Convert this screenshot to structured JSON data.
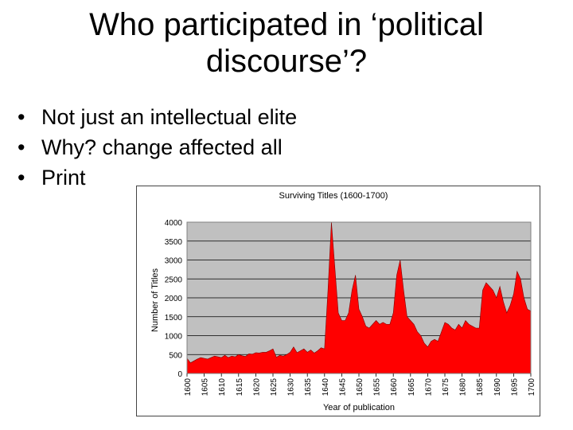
{
  "slide": {
    "title_line1": "Who participated in ‘political",
    "title_line2": "discourse’?",
    "bullets": [
      "Not just an intellectual elite",
      "Why? change affected all",
      "Print"
    ],
    "bullet_glyph": "•"
  },
  "chart_data": {
    "type": "area",
    "title": "Surviving Titles (1600-1700)",
    "xlabel": "Year of publication",
    "ylabel": "Number of Titles",
    "ylim": [
      0,
      4000
    ],
    "xlim": [
      1600,
      1700
    ],
    "y_ticks": [
      0,
      500,
      1000,
      1500,
      2000,
      2500,
      3000,
      3500,
      4000
    ],
    "x_ticks": [
      1600,
      1605,
      1610,
      1615,
      1620,
      1625,
      1630,
      1635,
      1640,
      1645,
      1650,
      1655,
      1660,
      1665,
      1670,
      1675,
      1680,
      1685,
      1690,
      1695,
      1700
    ],
    "grid": true,
    "fill_color": "#ff0000",
    "plot_bg": "#c0c0c0",
    "series": [
      {
        "x": [
          1600,
          1601,
          1602,
          1603,
          1604,
          1605,
          1606,
          1607,
          1608,
          1609,
          1610,
          1611,
          1612,
          1613,
          1614,
          1615,
          1616,
          1617,
          1618,
          1619,
          1620,
          1621,
          1622,
          1623,
          1624,
          1625,
          1626,
          1627,
          1628,
          1629,
          1630,
          1631,
          1632,
          1633,
          1634,
          1635,
          1636,
          1637,
          1638,
          1639,
          1640,
          1641,
          1642,
          1643,
          1644,
          1645,
          1646,
          1647,
          1648,
          1649,
          1650,
          1651,
          1652,
          1653,
          1654,
          1655,
          1656,
          1657,
          1658,
          1659,
          1660,
          1661,
          1662,
          1663,
          1664,
          1665,
          1666,
          1667,
          1668,
          1669,
          1670,
          1671,
          1672,
          1673,
          1674,
          1675,
          1676,
          1677,
          1678,
          1679,
          1680,
          1681,
          1682,
          1683,
          1684,
          1685,
          1686,
          1687,
          1688,
          1689,
          1690,
          1691,
          1692,
          1693,
          1694,
          1695,
          1696,
          1697,
          1698,
          1699,
          1700
        ],
        "values": [
          400,
          280,
          330,
          380,
          420,
          400,
          380,
          420,
          460,
          440,
          420,
          480,
          420,
          460,
          440,
          500,
          470,
          450,
          520,
          510,
          550,
          540,
          560,
          560,
          600,
          650,
          430,
          480,
          460,
          500,
          560,
          700,
          550,
          600,
          650,
          560,
          620,
          540,
          600,
          680,
          650,
          2200,
          4000,
          2800,
          1600,
          1400,
          1400,
          1600,
          2200,
          2600,
          1700,
          1500,
          1250,
          1200,
          1300,
          1400,
          1300,
          1350,
          1300,
          1300,
          1600,
          2600,
          3000,
          2200,
          1500,
          1400,
          1300,
          1100,
          1000,
          800,
          700,
          850,
          900,
          850,
          1100,
          1350,
          1300,
          1200,
          1150,
          1300,
          1200,
          1400,
          1300,
          1250,
          1200,
          1200,
          2200,
          2400,
          2300,
          2200,
          2000,
          2300,
          1900,
          1600,
          1800,
          2100,
          2700,
          2500,
          2000,
          1700,
          1650
        ]
      }
    ]
  }
}
